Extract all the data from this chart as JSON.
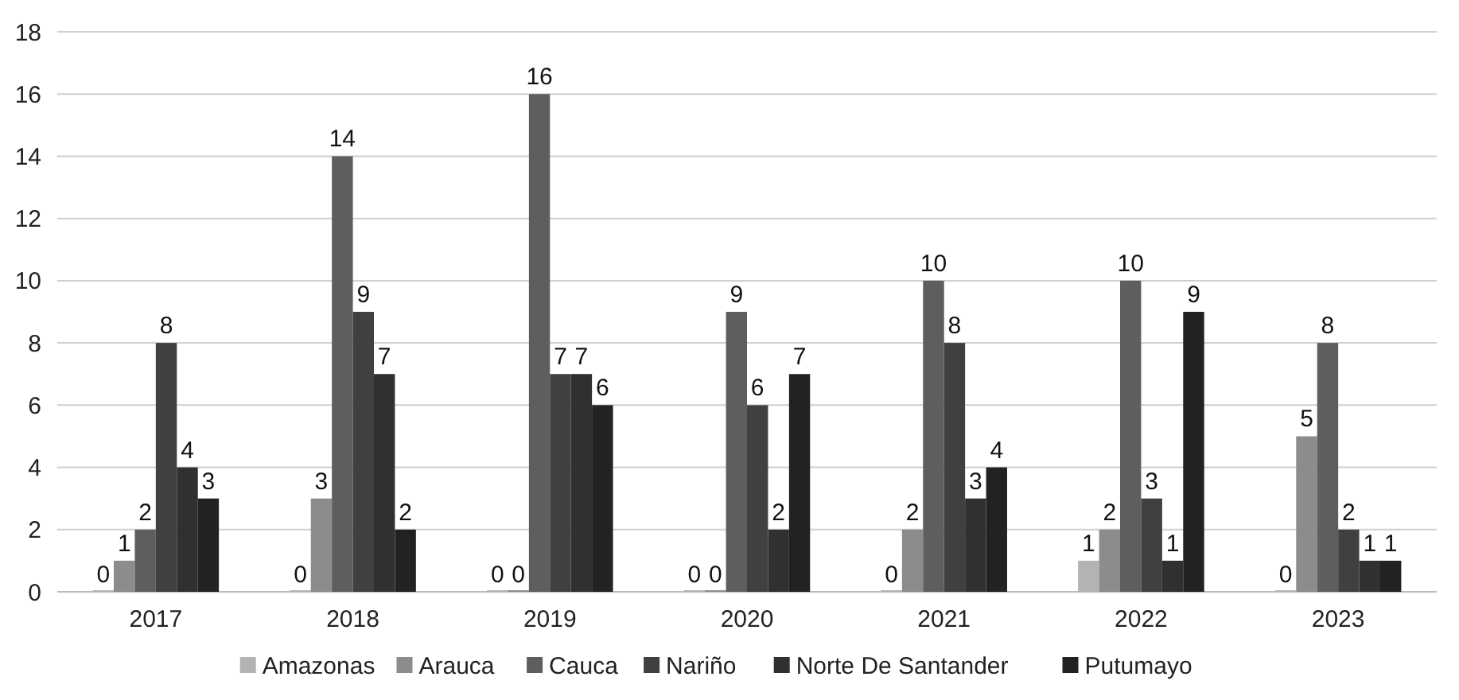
{
  "chart_data": {
    "type": "bar",
    "categories": [
      "2017",
      "2018",
      "2019",
      "2020",
      "2021",
      "2022",
      "2023"
    ],
    "series": [
      {
        "name": "Amazonas",
        "color": "#b3b3b3",
        "values": [
          0,
          0,
          0,
          0,
          0,
          1,
          0
        ]
      },
      {
        "name": "Arauca",
        "color": "#8c8c8c",
        "values": [
          1,
          3,
          0,
          0,
          2,
          2,
          5
        ]
      },
      {
        "name": "Cauca",
        "color": "#5e5e5e",
        "values": [
          2,
          14,
          16,
          9,
          10,
          10,
          8
        ]
      },
      {
        "name": "Nariño",
        "color": "#404040",
        "values": [
          8,
          9,
          7,
          6,
          8,
          3,
          2
        ]
      },
      {
        "name": "Norte De Santander",
        "color": "#303030",
        "values": [
          4,
          7,
          7,
          2,
          3,
          1,
          1
        ]
      },
      {
        "name": "Putumayo",
        "color": "#222222",
        "values": [
          3,
          2,
          6,
          7,
          4,
          9,
          1
        ]
      }
    ],
    "ylim": [
      0,
      18
    ],
    "yticks": [
      0,
      2,
      4,
      6,
      8,
      10,
      12,
      14,
      16,
      18
    ],
    "grid": "y",
    "legend": "bottom",
    "data_labels": true
  }
}
